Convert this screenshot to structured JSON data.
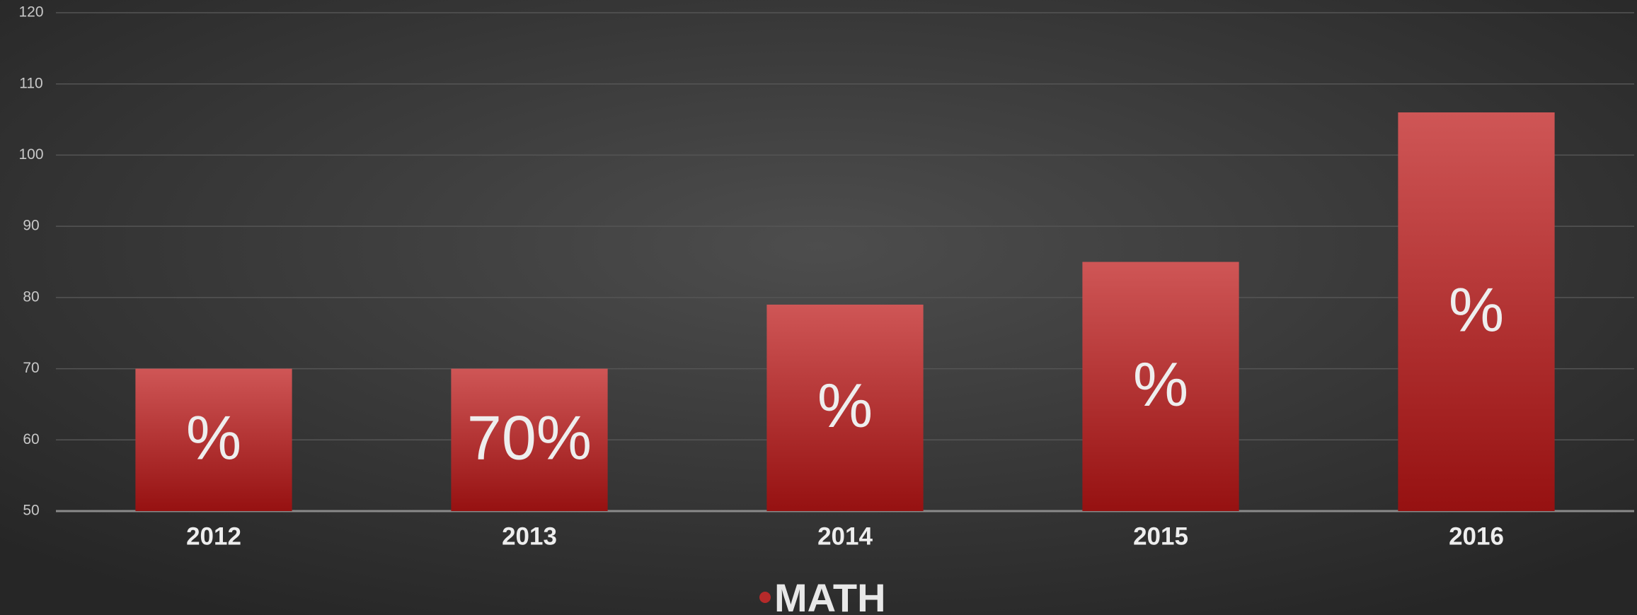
{
  "chart_data": {
    "type": "bar",
    "categories": [
      "2012",
      "2013",
      "2014",
      "2015",
      "2016"
    ],
    "series": [
      {
        "name": "MATH",
        "color": "#b52a2a",
        "values": [
          70,
          70,
          79,
          85,
          106
        ],
        "value_labels": [
          "%",
          "70%",
          "%",
          "%",
          "%"
        ]
      }
    ],
    "ylim": [
      50,
      120
    ],
    "yticks": [
      50,
      60,
      70,
      80,
      90,
      100,
      110,
      120
    ],
    "grid": true,
    "legend": "bottom"
  }
}
